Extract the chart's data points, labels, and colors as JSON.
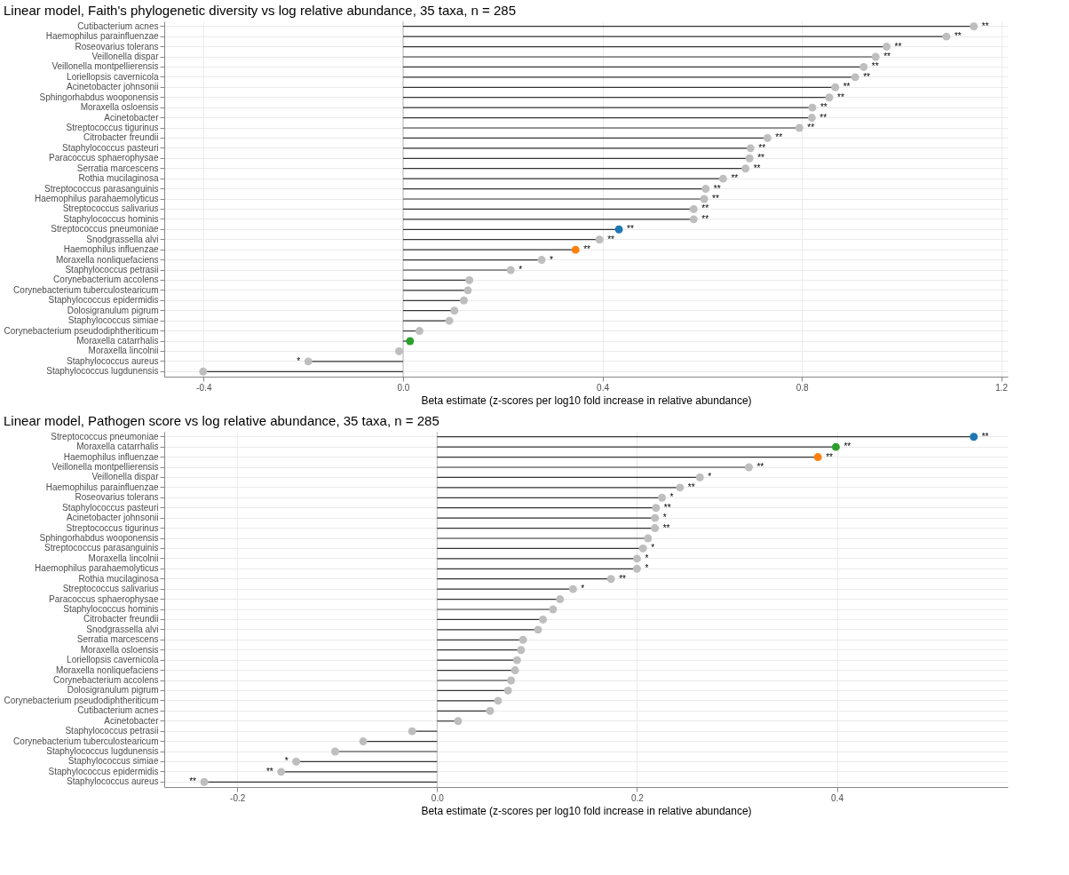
{
  "chart_data": [
    {
      "type": "lollipop",
      "orientation": "horizontal",
      "title": "Linear model, Faith's phylogenetic diversity vs log relative abundance, 35 taxa, n = 285",
      "xlabel": "Beta estimate (z-scores per log10 fold increase in relative abundance)",
      "categories": [
        "Cutibacterium acnes",
        "Haemophilus parainfluenzae",
        "Roseovarius tolerans",
        "Veillonella dispar",
        "Veillonella montpellierensis",
        "Loriellopsis cavernicola",
        "Acinetobacter johnsonii",
        "Sphingorhabdus wooponensis",
        "Moraxella osloensis",
        "Acinetobacter",
        "Streptococcus tigurinus",
        "Citrobacter freundii",
        "Staphylococcus pasteuri",
        "Paracoccus sphaerophysae",
        "Serratia marcescens",
        "Rothia mucilaginosa",
        "Streptococcus parasanguinis",
        "Haemophilus parahaemolyticus",
        "Streptococcus salivarius",
        "Staphylococcus hominis",
        "Streptococcus pneumoniae",
        "Snodgrassella alvi",
        "Haemophilus influenzae",
        "Moraxella nonliquefaciens",
        "Staphylococcus petrasii",
        "Corynebacterium accolens",
        "Corynebacterium tuberculostearicum",
        "Staphylococcus epidermidis",
        "Dolosigranulum pigrum",
        "Staphylococcus simiae",
        "Corynebacterium pseudodiphtheriticum",
        "Moraxella catarrhalis",
        "Moraxella lincolnii",
        "Staphylococcus aureus",
        "Staphylococcus lugdunensis"
      ],
      "values": [
        1.145,
        1.09,
        0.97,
        0.948,
        0.924,
        0.907,
        0.867,
        0.855,
        0.821,
        0.82,
        0.795,
        0.731,
        0.697,
        0.695,
        0.687,
        0.642,
        0.607,
        0.604,
        0.583,
        0.583,
        0.433,
        0.394,
        0.346,
        0.278,
        0.216,
        0.133,
        0.13,
        0.122,
        0.103,
        0.093,
        0.033,
        0.014,
        -0.008,
        -0.19,
        -0.401
      ],
      "colors": [
        "#bebebe",
        "#bebebe",
        "#bebebe",
        "#bebebe",
        "#bebebe",
        "#bebebe",
        "#bebebe",
        "#bebebe",
        "#bebebe",
        "#bebebe",
        "#bebebe",
        "#bebebe",
        "#bebebe",
        "#bebebe",
        "#bebebe",
        "#bebebe",
        "#bebebe",
        "#bebebe",
        "#bebebe",
        "#bebebe",
        "#1f77b4",
        "#bebebe",
        "#ff7f0e",
        "#bebebe",
        "#bebebe",
        "#bebebe",
        "#bebebe",
        "#bebebe",
        "#bebebe",
        "#bebebe",
        "#bebebe",
        "#2ca02c",
        "#bebebe",
        "#bebebe",
        "#bebebe"
      ],
      "value_labels": [
        "**",
        "**",
        "**",
        "**",
        "**",
        "**",
        "**",
        "**",
        "**",
        "**",
        "**",
        "**",
        "**",
        "**",
        "**",
        "**",
        "**",
        "**",
        "**",
        "**",
        "**",
        "**",
        "**",
        "*",
        "*",
        null,
        null,
        null,
        null,
        null,
        null,
        null,
        null,
        "*",
        null
      ],
      "xlim": [
        -0.479,
        1.213
      ],
      "xticks": [
        {
          "value": -0.4,
          "label": "-0.4"
        },
        {
          "value": 0,
          "label": "0.0"
        },
        {
          "value": 0.4,
          "label": "0.4"
        },
        {
          "value": 0.8,
          "label": "0.8"
        },
        {
          "value": 1.2,
          "label": "1.2"
        }
      ],
      "grid": true,
      "ref_lines": [
        {
          "axis": "x",
          "value": 0,
          "color": "#bdbdbd"
        }
      ]
    },
    {
      "type": "lollipop",
      "orientation": "horizontal",
      "title": "Linear model, Pathogen score vs log relative abundance, 35 taxa, n = 285",
      "xlabel": "Beta estimate (z-scores per log10 fold increase in relative abundance)",
      "categories": [
        "Streptococcus pneumoniae",
        "Moraxella catarrhalis",
        "Haemophilus influenzae",
        "Veillonella montpellierensis",
        "Veillonella dispar",
        "Haemophilus parainfluenzae",
        "Roseovarius tolerans",
        "Staphylococcus pasteuri",
        "Acinetobacter johnsonii",
        "Streptococcus tigurinus",
        "Sphingorhabdus wooponensis",
        "Streptococcus parasanguinis",
        "Moraxella lincolnii",
        "Haemophilus parahaemolyticus",
        "Rothia mucilaginosa",
        "Streptococcus salivarius",
        "Paracoccus sphaerophysae",
        "Staphylococcus hominis",
        "Citrobacter freundii",
        "Snodgrassella alvi",
        "Serratia marcescens",
        "Moraxella osloensis",
        "Loriellopsis cavernicola",
        "Moraxella nonliquefaciens",
        "Corynebacterium accolens",
        "Dolosigranulum pigrum",
        "Corynebacterium pseudodiphtheriticum",
        "Cutibacterium acnes",
        "Acinetobacter",
        "Staphylococcus petrasii",
        "Corynebacterium tuberculostearicum",
        "Staphylococcus lugdunensis",
        "Staphylococcus simiae",
        "Staphylococcus epidermidis",
        "Staphylococcus aureus"
      ],
      "values": [
        0.537,
        0.399,
        0.381,
        0.312,
        0.263,
        0.243,
        0.225,
        0.219,
        0.218,
        0.218,
        0.211,
        0.206,
        0.2,
        0.2,
        0.174,
        0.136,
        0.123,
        0.116,
        0.106,
        0.101,
        0.086,
        0.084,
        0.08,
        0.078,
        0.074,
        0.071,
        0.061,
        0.053,
        0.021,
        -0.025,
        -0.074,
        -0.102,
        -0.141,
        -0.156,
        -0.233
      ],
      "colors": [
        "#1f77b4",
        "#2ca02c",
        "#ff7f0e",
        "#bebebe",
        "#bebebe",
        "#bebebe",
        "#bebebe",
        "#bebebe",
        "#bebebe",
        "#bebebe",
        "#bebebe",
        "#bebebe",
        "#bebebe",
        "#bebebe",
        "#bebebe",
        "#bebebe",
        "#bebebe",
        "#bebebe",
        "#bebebe",
        "#bebebe",
        "#bebebe",
        "#bebebe",
        "#bebebe",
        "#bebebe",
        "#bebebe",
        "#bebebe",
        "#bebebe",
        "#bebebe",
        "#bebebe",
        "#bebebe",
        "#bebebe",
        "#bebebe",
        "#bebebe",
        "#bebebe",
        "#bebebe"
      ],
      "value_labels": [
        "**",
        "**",
        "**",
        "**",
        "*",
        "**",
        "*",
        "**",
        "*",
        "**",
        null,
        "*",
        "*",
        "*",
        "**",
        "*",
        null,
        null,
        null,
        null,
        null,
        null,
        null,
        null,
        null,
        null,
        null,
        null,
        null,
        null,
        null,
        null,
        "*",
        "**",
        "**"
      ],
      "xlim": [
        -0.273,
        0.571
      ],
      "xticks": [
        {
          "value": -0.2,
          "label": "-0.2"
        },
        {
          "value": 0,
          "label": "0.0"
        },
        {
          "value": 0.2,
          "label": "0.2"
        },
        {
          "value": 0.4,
          "label": "0.4"
        }
      ],
      "grid": true,
      "ref_lines": [
        {
          "axis": "x",
          "value": 0,
          "color": "#bdbdbd"
        }
      ]
    }
  ]
}
